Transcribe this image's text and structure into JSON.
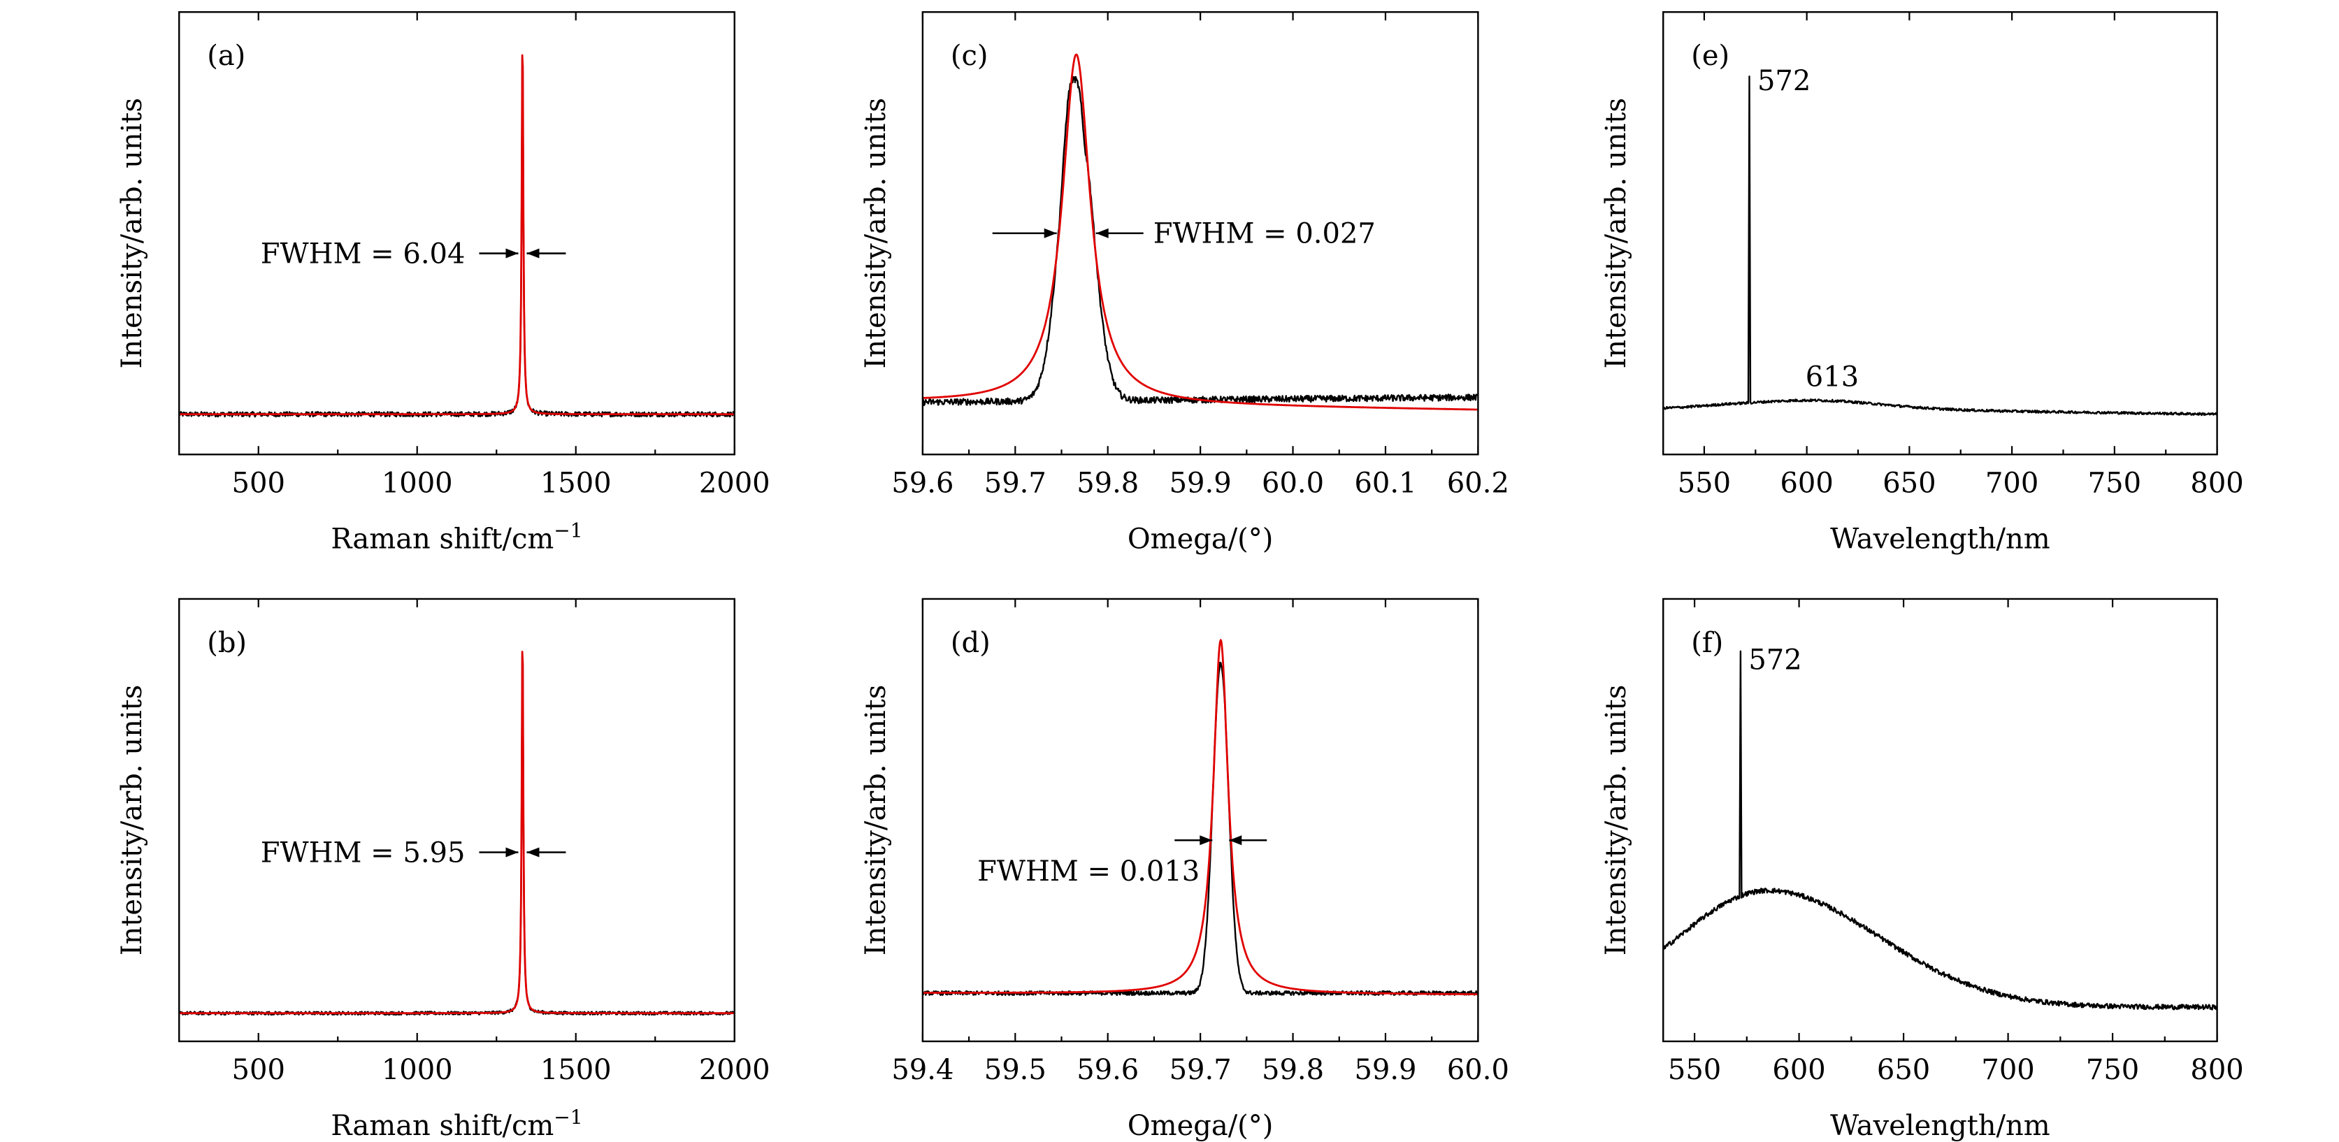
{
  "colors": {
    "measured": "#000000",
    "fit": "#e00000"
  },
  "chart_data": [
    {
      "id": "a",
      "type": "line",
      "label": "(a)",
      "xlabel": "Raman shift/cm",
      "xlabel_sup": "−1",
      "ylabel": "Intensity/arb. units",
      "xlim": [
        250,
        2000
      ],
      "ylim": [
        0,
        1.1
      ],
      "xticks": [
        500,
        1000,
        1500,
        2000
      ],
      "tick_labels": [
        "500",
        "1000",
        "1500",
        "2000"
      ],
      "baseline": 0.1,
      "peak": {
        "center": 1332,
        "height": 1.0,
        "fwhm": 6.04
      },
      "series": [
        {
          "style": "measured",
          "model": "noisy_lorentz",
          "noise": 0.006
        },
        {
          "style": "fit",
          "model": "lorentz"
        }
      ],
      "annotations": [
        {
          "text": "FWHM = 6.04",
          "x": 1332,
          "y": 0.5,
          "anchor": "left"
        }
      ]
    },
    {
      "id": "b",
      "type": "line",
      "label": "(b)",
      "xlabel": "Raman shift/cm",
      "xlabel_sup": "−1",
      "ylabel": "Intensity/arb. units",
      "xlim": [
        250,
        2000
      ],
      "ylim": [
        0,
        1.1
      ],
      "xticks": [
        500,
        1000,
        1500,
        2000
      ],
      "tick_labels": [
        "500",
        "1000",
        "1500",
        "2000"
      ],
      "baseline": 0.07,
      "peak": {
        "center": 1332,
        "height": 1.0,
        "fwhm": 5.95
      },
      "series": [
        {
          "style": "measured",
          "model": "noisy_lorentz",
          "noise": 0.004
        },
        {
          "style": "fit",
          "model": "lorentz"
        }
      ],
      "annotations": [
        {
          "text": "FWHM = 5.95",
          "x": 1332,
          "y": 0.47,
          "anchor": "left"
        }
      ]
    },
    {
      "id": "c",
      "type": "line",
      "label": "(c)",
      "xlabel": "Omega/(°)",
      "ylabel": "Intensity/arb. units",
      "xlim": [
        59.6,
        60.2
      ],
      "ylim": [
        0,
        1.1
      ],
      "xticks": [
        59.6,
        59.7,
        59.8,
        59.9,
        60.0,
        60.1,
        60.2
      ],
      "tick_labels": [
        "59.6",
        "59.7",
        "59.8",
        "59.9",
        "60.0",
        "60.1",
        "60.2"
      ],
      "baseline": 0.13,
      "peak": {
        "center": 59.766,
        "height": 1.0,
        "fwhm": 0.027
      },
      "measured_peak": {
        "center": 59.766,
        "height": 0.92,
        "fwhm": 0.04
      },
      "series": [
        {
          "style": "measured",
          "model": "noisy_gauss",
          "noise": 0.008
        },
        {
          "style": "fit",
          "model": "lorentz"
        }
      ],
      "annotations": [
        {
          "text": "FWHM = 0.027",
          "x": 59.766,
          "y": 0.55,
          "anchor": "right"
        }
      ]
    },
    {
      "id": "d",
      "type": "line",
      "label": "(d)",
      "xlabel": "Omega/(°)",
      "ylabel": "Intensity/arb. units",
      "xlim": [
        59.4,
        60.0
      ],
      "ylim": [
        0,
        1.1
      ],
      "xticks": [
        59.4,
        59.5,
        59.6,
        59.7,
        59.8,
        59.9,
        60.0
      ],
      "tick_labels": [
        "59.4",
        "59.5",
        "59.6",
        "59.7",
        "59.8",
        "59.9",
        "60.0"
      ],
      "baseline": 0.12,
      "peak": {
        "center": 59.722,
        "height": 1.0,
        "fwhm": 0.013
      },
      "measured_peak": {
        "center": 59.722,
        "height": 0.94,
        "fwhm": 0.02
      },
      "series": [
        {
          "style": "measured",
          "model": "noisy_gauss",
          "noise": 0.005
        },
        {
          "style": "fit",
          "model": "lorentz"
        }
      ],
      "annotations": [
        {
          "text": "FWHM = 0.013",
          "x": 59.722,
          "y": 0.5,
          "anchor": "left-low"
        }
      ]
    },
    {
      "id": "e",
      "type": "line",
      "label": "(e)",
      "xlabel": "Wavelength/nm",
      "ylabel": "Intensity/arb. units",
      "xlim": [
        530,
        800
      ],
      "ylim": [
        0,
        1.1
      ],
      "xticks": [
        550,
        600,
        650,
        700,
        750,
        800
      ],
      "tick_labels": [
        "550",
        "600",
        "650",
        "700",
        "750",
        "800"
      ],
      "sharp_peak": {
        "center": 572,
        "height": 0.94
      },
      "series": [
        {
          "style": "measured",
          "model": "pl_flat",
          "noise": 0.003
        }
      ],
      "annotations": [
        {
          "text": "572",
          "x": 572.5,
          "y": 0.93
        },
        {
          "text": "613",
          "x": 613,
          "y": 0.18
        }
      ]
    },
    {
      "id": "f",
      "type": "line",
      "label": "(f)",
      "xlabel": "Wavelength/nm",
      "ylabel": "Intensity/arb. units",
      "xlim": [
        535,
        800
      ],
      "ylim": [
        0,
        1.1
      ],
      "xticks": [
        550,
        600,
        650,
        700,
        750,
        800
      ],
      "tick_labels": [
        "550",
        "600",
        "650",
        "700",
        "750",
        "800"
      ],
      "sharp_peak": {
        "center": 572,
        "height": 0.97
      },
      "series": [
        {
          "style": "measured",
          "model": "pl_broad",
          "noise": 0.006
        }
      ],
      "annotations": [
        {
          "text": "572",
          "x": 572.5,
          "y": 0.95
        }
      ]
    }
  ]
}
